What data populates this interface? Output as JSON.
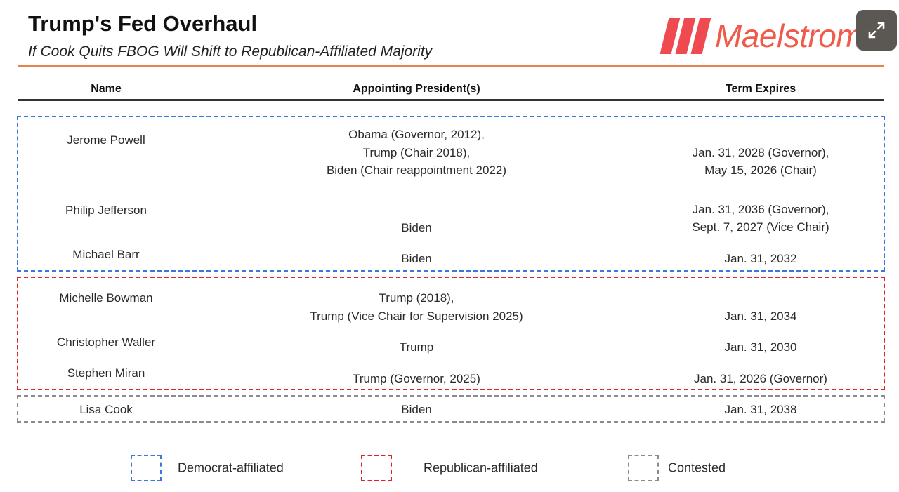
{
  "header": {
    "title": "Trump's Fed Overhaul",
    "subtitle": "If Cook Quits FBOG Will Shift to Republican-Affiliated Majority",
    "logo_text": "Maelstrom"
  },
  "columns": [
    "Name",
    "Appointing President(s)",
    "Term Expires"
  ],
  "rows": [
    {
      "name": "Jerome Powell",
      "appointed": [
        "Obama (Governor, 2012),",
        "Trump (Chair 2018),",
        "Biden (Chair reappointment 2022)"
      ],
      "term": [
        "Jan. 31, 2028 (Governor),",
        "May 15, 2026 (Chair)"
      ],
      "group": "Democrat-affiliated"
    },
    {
      "name": "Philip Jefferson",
      "appointed": [
        "Biden"
      ],
      "term": [
        "Jan. 31, 2036 (Governor),",
        "Sept. 7, 2027 (Vice Chair)"
      ],
      "group": "Democrat-affiliated"
    },
    {
      "name": "Michael Barr",
      "appointed": [
        "Biden"
      ],
      "term": [
        "Jan. 31, 2032"
      ],
      "group": "Democrat-affiliated"
    },
    {
      "name": "Michelle Bowman",
      "appointed": [
        "Trump (2018),",
        "Trump (Vice Chair for Supervision 2025)"
      ],
      "term": [
        "Jan. 31, 2034"
      ],
      "group": "Republican-affiliated"
    },
    {
      "name": "Christopher Waller",
      "appointed": [
        "Trump"
      ],
      "term": [
        "Jan. 31, 2030"
      ],
      "group": "Republican-affiliated"
    },
    {
      "name": "Stephen Miran",
      "appointed": [
        "Trump (Governor, 2025)"
      ],
      "term": [
        "Jan. 31, 2026 (Governor)"
      ],
      "group": "Republican-affiliated"
    },
    {
      "name": "Lisa Cook",
      "appointed": [
        "Biden"
      ],
      "term": [
        "Jan. 31, 2038"
      ],
      "group": "Contested"
    }
  ],
  "legend": [
    {
      "label": "Democrat-affiliated",
      "color": "#3b78d8"
    },
    {
      "label": "Republican-affiliated",
      "color": "#e02424"
    },
    {
      "label": "Contested",
      "color": "#8c8c8c"
    }
  ],
  "colors": {
    "accent": "#e9814a",
    "logo": "#ef4a50"
  },
  "icons": {
    "expand": "expand-icon"
  }
}
